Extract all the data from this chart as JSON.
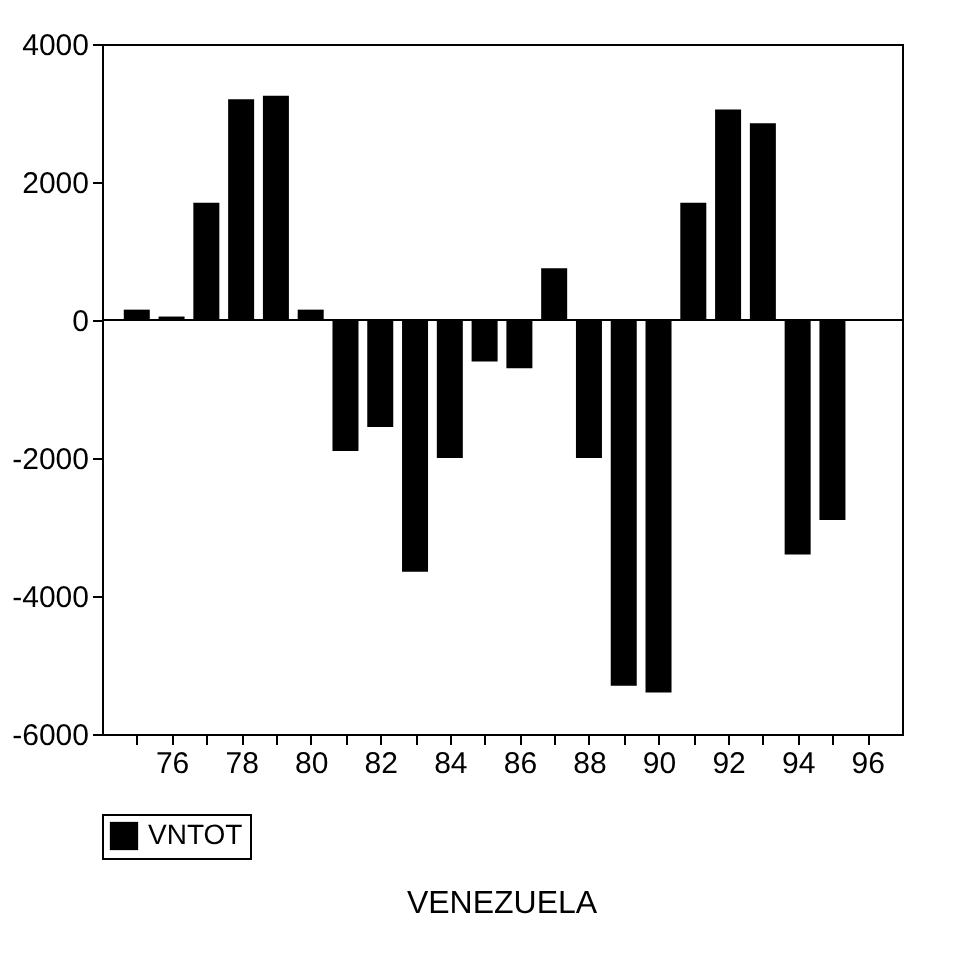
{
  "chart_data": {
    "type": "bar",
    "title": "VENEZUELA",
    "x": [
      75,
      76,
      77,
      78,
      79,
      80,
      81,
      82,
      83,
      84,
      85,
      86,
      87,
      88,
      89,
      90,
      91,
      92,
      93,
      94,
      95
    ],
    "series": [
      {
        "name": "VNTOT",
        "color": "#000000",
        "values": [
          150,
          50,
          1700,
          3200,
          3250,
          150,
          -1900,
          -1550,
          -3650,
          -2000,
          -600,
          -700,
          750,
          -2000,
          -5300,
          -5400,
          1700,
          3050,
          2850,
          -3400,
          -2900
        ]
      }
    ],
    "xlim": [
      74,
      97
    ],
    "xticks": [
      {
        "value": 75,
        "label": null
      },
      76,
      {
        "value": 77,
        "label": null
      },
      78,
      {
        "value": 79,
        "label": null
      },
      80,
      {
        "value": 81,
        "label": null
      },
      82,
      {
        "value": 83,
        "label": null
      },
      84,
      {
        "value": 85,
        "label": null
      },
      86,
      {
        "value": 87,
        "label": null
      },
      88,
      {
        "value": 89,
        "label": null
      },
      90,
      {
        "value": 91,
        "label": null
      },
      92,
      {
        "value": 93,
        "label": null
      },
      94,
      {
        "value": 95,
        "label": null
      },
      96
    ],
    "ylim": [
      -6000,
      4000
    ],
    "yticks": [
      -6000,
      -4000,
      -2000,
      0,
      2000,
      4000
    ],
    "ref_lines": [
      {
        "axis": "y",
        "value": 0
      }
    ],
    "grid": false,
    "legend": "bottom"
  }
}
